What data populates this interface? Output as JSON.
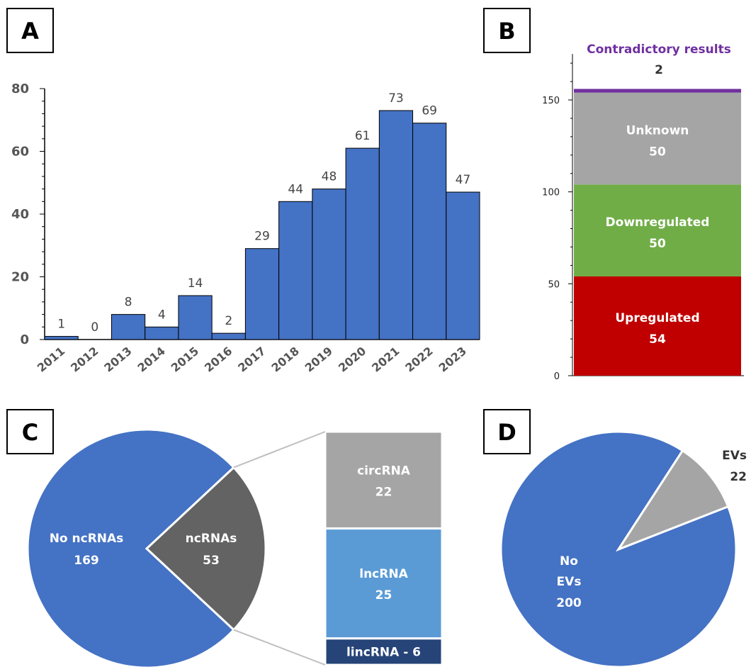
{
  "panels": {
    "a": {
      "letter": "A"
    },
    "b": {
      "letter": "B"
    },
    "c": {
      "letter": "C"
    },
    "d": {
      "letter": "D"
    }
  },
  "colors": {
    "blue": "#4472C4",
    "purple": "#7030A0",
    "gray": "#A5A5A5",
    "green": "#70AD47",
    "red": "#C00000",
    "dark_gray": "#636363",
    "light_blue": "#5B9BD5",
    "navy": "#264478"
  },
  "chart_data": [
    {
      "type": "bar",
      "panel": "A",
      "categories": [
        "2011",
        "2012",
        "2013",
        "2014",
        "2015",
        "2016",
        "2017",
        "2018",
        "2019",
        "2020",
        "2021",
        "2022",
        "2023"
      ],
      "values": [
        1,
        0,
        8,
        4,
        14,
        2,
        29,
        44,
        48,
        61,
        73,
        69,
        47
      ],
      "ylim": [
        0,
        80
      ],
      "yticks": [
        0,
        20,
        40,
        60,
        80
      ]
    },
    {
      "type": "bar",
      "panel": "B",
      "stacked": true,
      "ylim": [
        0,
        175
      ],
      "yticks": [
        0,
        50,
        100,
        150
      ],
      "segments": [
        {
          "label": "Upregulated",
          "value": 54,
          "color": "#C00000"
        },
        {
          "label": "Downregulated",
          "value": 50,
          "color": "#70AD47"
        },
        {
          "label": "Unknown",
          "value": 50,
          "color": "#A5A5A5"
        },
        {
          "label": "Contradictory results",
          "value": 2,
          "color": "#7030A0"
        }
      ]
    },
    {
      "type": "pie",
      "panel": "C",
      "slices": [
        {
          "label": "No ncRNAs",
          "value": 169,
          "color": "#4472C4"
        },
        {
          "label": "ncRNAs",
          "value": 53,
          "color": "#636363"
        }
      ],
      "breakdown": [
        {
          "label": "circRNA",
          "value": 22,
          "color": "#A5A5A5"
        },
        {
          "label": "lncRNA",
          "value": 25,
          "color": "#5B9BD5"
        },
        {
          "label": "lincRNA -",
          "value": 6,
          "color": "#264478"
        }
      ]
    },
    {
      "type": "pie",
      "panel": "D",
      "slices": [
        {
          "label_lines": [
            "No",
            "EVs"
          ],
          "value": 200,
          "color": "#4472C4"
        },
        {
          "label": "EVs",
          "value": 22,
          "color": "#A5A5A5"
        }
      ]
    }
  ]
}
